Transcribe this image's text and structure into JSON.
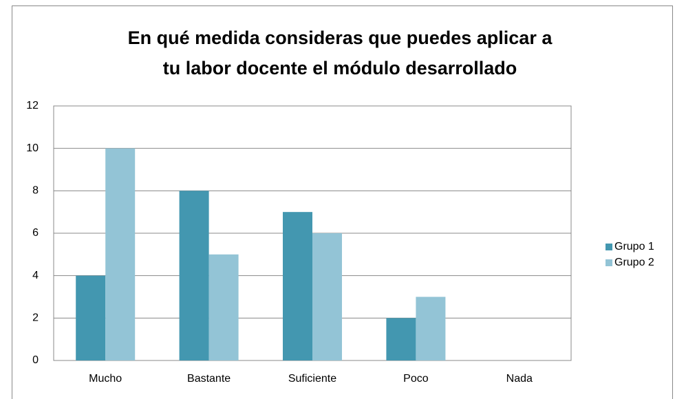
{
  "chart_data": {
    "type": "bar",
    "title": [
      "En qué medida consideras que puedes aplicar a",
      "tu labor docente el módulo desarrollado"
    ],
    "categories": [
      "Mucho",
      "Bastante",
      "Suficiente",
      "Poco",
      "Nada"
    ],
    "series": [
      {
        "name": "Grupo 1",
        "color": "#4397b0",
        "values": [
          4,
          8,
          7,
          2,
          0
        ]
      },
      {
        "name": "Grupo 2",
        "color": "#93c4d6",
        "values": [
          10,
          5,
          6,
          3,
          0
        ]
      }
    ],
    "ylim": [
      0,
      12
    ],
    "yticks": [
      0,
      2,
      4,
      6,
      8,
      10,
      12
    ],
    "grid": true,
    "legend": "right"
  }
}
